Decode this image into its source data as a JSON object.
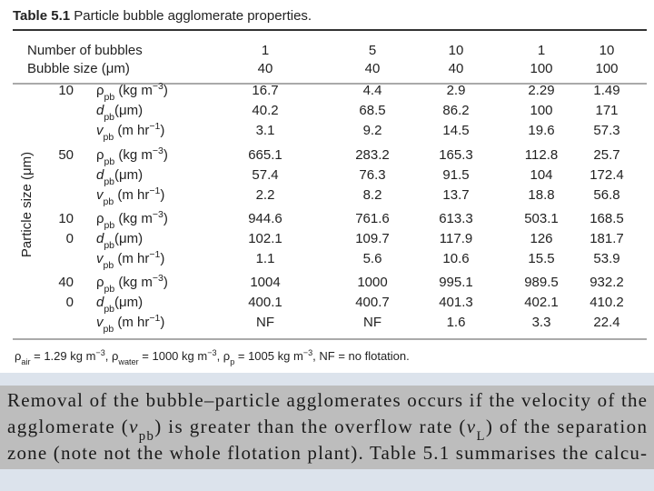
{
  "table": {
    "label": "Table 5.1",
    "caption": " Particle  bubble agglomerate properties.",
    "axis_label": "Particle size (μm)",
    "header": [
      {
        "name": "Number of bubbles",
        "cells": [
          "1",
          "5",
          "10",
          "1",
          "10"
        ]
      },
      {
        "name": "Bubble size (μm)",
        "cells": [
          "40",
          "40",
          "40",
          "100",
          "100"
        ]
      }
    ],
    "properties": [
      [
        {
          "text": "ρ"
        },
        {
          "sub": "pb"
        },
        {
          "text": " (kg m"
        },
        {
          "sup": "−3"
        },
        {
          "text": ")"
        }
      ],
      [
        {
          "italic": "d"
        },
        {
          "sub": "pb"
        },
        {
          "text": "(μm)"
        }
      ],
      [
        {
          "italic": "v"
        },
        {
          "sub": "pb"
        },
        {
          "text": "  (m hr"
        },
        {
          "sup": "−1"
        },
        {
          "text": ")"
        }
      ]
    ],
    "groups": [
      {
        "size": [
          "10"
        ],
        "rows": [
          [
            "16.7",
            "4.4",
            "2.9",
            "2.29",
            "1.49"
          ],
          [
            "40.2",
            "68.5",
            "86.2",
            "100",
            "171"
          ],
          [
            "3.1",
            "9.2",
            "14.5",
            "19.6",
            "57.3"
          ]
        ]
      },
      {
        "size": [
          "50"
        ],
        "rows": [
          [
            "665.1",
            "283.2",
            "165.3",
            "112.8",
            "25.7"
          ],
          [
            "57.4",
            "76.3",
            "91.5",
            "104",
            "172.4"
          ],
          [
            "2.2",
            "8.2",
            "13.7",
            "18.8",
            "56.8"
          ]
        ]
      },
      {
        "size": [
          "10",
          "0"
        ],
        "rows": [
          [
            "944.6",
            "761.6",
            "613.3",
            "503.1",
            "168.5"
          ],
          [
            "102.1",
            "109.7",
            "117.9",
            "126",
            "181.7"
          ],
          [
            "1.1",
            "5.6",
            "10.6",
            "15.5",
            "53.9"
          ]
        ]
      },
      {
        "size": [
          "40",
          "0"
        ],
        "rows": [
          [
            "1004",
            "1000",
            "995.1",
            "989.5",
            "932.2"
          ],
          [
            "400.1",
            "400.7",
            "401.3",
            "402.1",
            "410.2"
          ],
          [
            "NF",
            "NF",
            "1.6",
            "3.3",
            "22.4"
          ]
        ]
      }
    ],
    "footnote": [
      {
        "text": "ρ"
      },
      {
        "sub": "air"
      },
      {
        "text": " = 1.29 kg m"
      },
      {
        "sup": "−3"
      },
      {
        "text": ", ρ"
      },
      {
        "sub": "water"
      },
      {
        "text": " = 1000 kg m"
      },
      {
        "sup": "−3"
      },
      {
        "text": ", ρ"
      },
      {
        "sub": "p"
      },
      {
        "text": " = 1005 kg m"
      },
      {
        "sup": "−3"
      },
      {
        "text": ", NF = no flotation."
      }
    ]
  },
  "paragraph": [
    [
      {
        "text": "Removal of the bubble–particle agglomerates occurs if the velocity of the"
      }
    ],
    [
      {
        "text": "agglomerate ("
      },
      {
        "italic": "v"
      },
      {
        "sub": "pb"
      },
      {
        "text": ") is greater than the overflow rate ("
      },
      {
        "italic": "v"
      },
      {
        "sub": "L"
      },
      {
        "text": ") of the separation"
      }
    ],
    [
      {
        "text": "zone (note not the whole flotation plant). Table 5.1 summarises the calcu-"
      }
    ]
  ]
}
